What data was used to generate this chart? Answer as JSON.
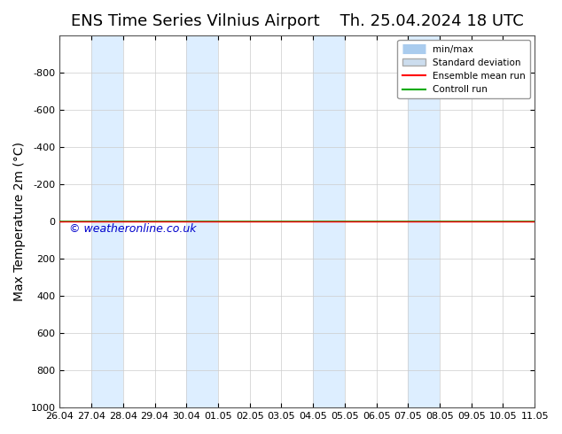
{
  "title_left": "ENS Time Series Vilnius Airport",
  "title_right": "Th. 25.04.2024 18 UTC",
  "ylabel": "Max Temperature 2m (°C)",
  "ylim_bottom": 1000,
  "ylim_top": -1000,
  "yticks": [
    -800,
    -600,
    -400,
    -200,
    0,
    200,
    400,
    600,
    800,
    1000
  ],
  "xlim_start": 0,
  "xlim_end": 15,
  "xtick_labels": [
    "26.04",
    "27.04",
    "28.04",
    "29.04",
    "30.04",
    "01.05",
    "02.05",
    "03.05",
    "04.05",
    "05.05",
    "06.05",
    "07.05",
    "08.05",
    "09.05",
    "10.05",
    "11.05"
  ],
  "blue_bands": [
    [
      1,
      2
    ],
    [
      4,
      5
    ],
    [
      8,
      9
    ],
    [
      11,
      12
    ]
  ],
  "green_line_y": 0,
  "green_line_color": "#00aa00",
  "red_line_y": 0,
  "red_line_color": "#ff0000",
  "minmax_color": "#aaccee",
  "std_color": "#ccddee",
  "band_color": "#ddeeff",
  "watermark": "© weatheronline.co.uk",
  "watermark_color": "#0000cc",
  "background_color": "#ffffff",
  "legend_entries": [
    "min/max",
    "Standard deviation",
    "Ensemble mean run",
    "Controll run"
  ],
  "title_fontsize": 13,
  "axis_fontsize": 10
}
